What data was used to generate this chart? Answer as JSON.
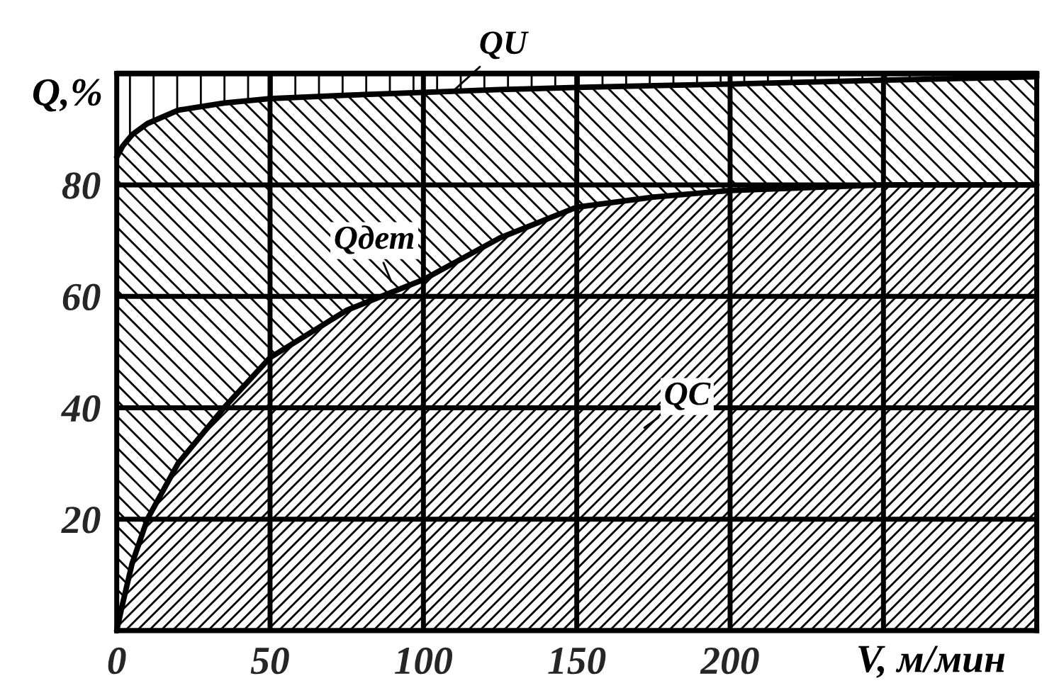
{
  "chart_data": {
    "type": "area",
    "stacked": true,
    "xlabel": "V, м/мин",
    "ylabel": "Q,%",
    "x": [
      0,
      2,
      5,
      10,
      20,
      35,
      50,
      75,
      100,
      125,
      150,
      175,
      200,
      250,
      300
    ],
    "series": [
      {
        "name": "QC",
        "color": "#000000",
        "values": [
          0,
          5,
          12,
          20,
          30,
          40,
          49,
          57.5,
          63,
          70.5,
          76,
          77.8,
          79,
          80,
          80
        ]
      },
      {
        "name": "Qдет",
        "color": "#000000",
        "values": [
          85,
          82,
          77,
          71,
          63.4,
          54.7,
          46.5,
          38.6,
          33.6,
          26.6,
          21.5,
          20,
          19.1,
          18.8,
          19.4
        ]
      },
      {
        "name": "QU",
        "color": "#000000",
        "values": [
          15,
          13,
          11,
          9,
          6.6,
          5.3,
          4.5,
          3.9,
          3.4,
          2.9,
          2.5,
          2.2,
          1.9,
          1.2,
          0.6
        ]
      }
    ],
    "xlim": [
      0,
      300
    ],
    "ylim": [
      0,
      100
    ],
    "xticks": [
      0,
      50,
      100,
      150,
      200,
      {
        "value": 250,
        "label": null
      },
      {
        "value": 300,
        "label": null
      }
    ],
    "yticks": [
      {
        "value": 0,
        "label": null
      },
      20,
      40,
      60,
      80,
      {
        "value": 100,
        "label": null
      }
    ],
    "grid": true
  }
}
